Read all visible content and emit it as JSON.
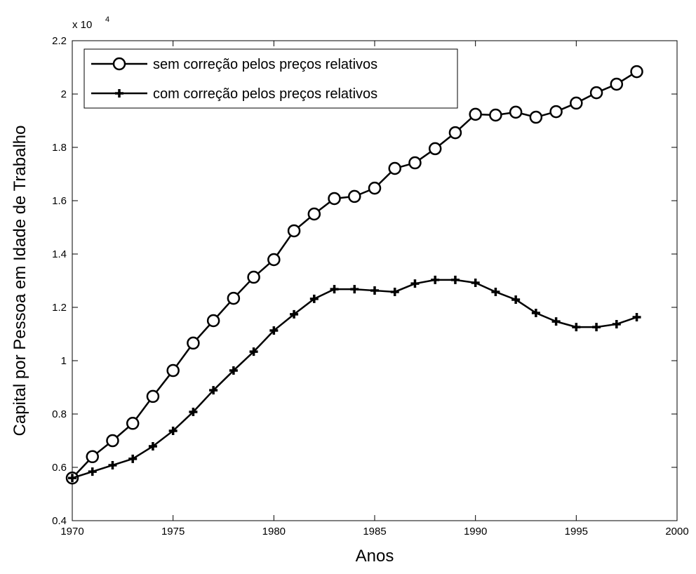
{
  "chart_data": {
    "type": "line",
    "xlabel": "Anos",
    "ylabel": "Capital por Pessoa em Idade de Trabalho",
    "y_scale_label": {
      "base": "x 10",
      "exponent": "4"
    },
    "x": [
      1970,
      1971,
      1972,
      1973,
      1974,
      1975,
      1976,
      1977,
      1978,
      1979,
      1980,
      1981,
      1982,
      1983,
      1984,
      1985,
      1986,
      1987,
      1988,
      1989,
      1990,
      1991,
      1992,
      1993,
      1994,
      1995,
      1996,
      1997,
      1998
    ],
    "series": [
      {
        "name": "sem correção pelos preços relativos",
        "color": "#000000",
        "marker": "circle",
        "values": [
          0.56,
          0.64,
          0.7,
          0.765,
          0.866,
          0.963,
          1.066,
          1.15,
          1.234,
          1.313,
          1.379,
          1.487,
          1.55,
          1.608,
          1.616,
          1.647,
          1.721,
          1.742,
          1.795,
          1.855,
          1.924,
          1.921,
          1.932,
          1.913,
          1.934,
          1.966,
          2.005,
          2.037,
          2.084
        ]
      },
      {
        "name": "com correção pelos preços relativos",
        "color": "#000000",
        "marker": "plus",
        "values": [
          0.56,
          0.584,
          0.608,
          0.632,
          0.679,
          0.737,
          0.808,
          0.889,
          0.963,
          1.034,
          1.113,
          1.174,
          1.232,
          1.268,
          1.268,
          1.263,
          1.258,
          1.289,
          1.303,
          1.303,
          1.292,
          1.258,
          1.229,
          1.179,
          1.147,
          1.126,
          1.126,
          1.137,
          1.163
        ]
      }
    ],
    "xlim": [
      1970,
      2000
    ],
    "xticks": [
      1970,
      1975,
      1980,
      1985,
      1990,
      1995,
      2000
    ],
    "ylim": [
      0.4,
      2.2
    ],
    "yticks": [
      0.4,
      0.6,
      0.8,
      1,
      1.2,
      1.4,
      1.6,
      1.8,
      2,
      2.2
    ],
    "grid": false,
    "legend": "upper-left"
  }
}
